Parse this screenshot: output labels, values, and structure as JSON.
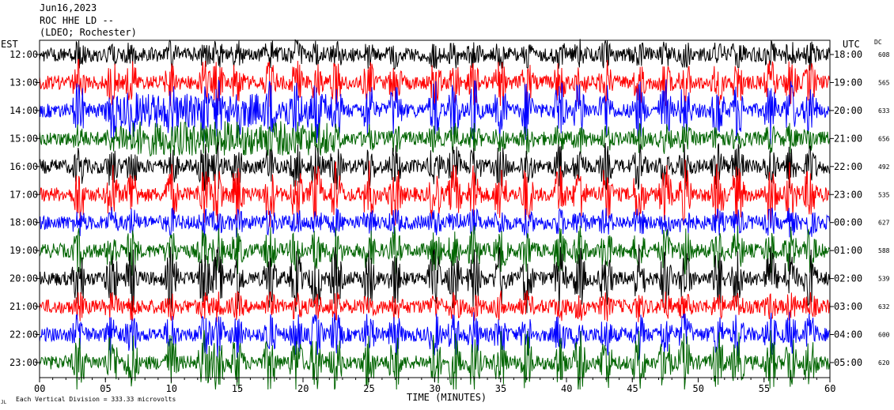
{
  "header": {
    "date": "Jun16,2023",
    "station": "ROC HHE LD --",
    "network": "(LDEO; Rochester)"
  },
  "chart_data": {
    "type": "line",
    "left_axis_label": "EST",
    "right_axis_label": "UTC",
    "dc_header": "DC",
    "xlabel": "TIME (MINUTES)",
    "x_ticks": [
      "00",
      "05",
      "10",
      "15",
      "20",
      "25",
      "30",
      "35",
      "40",
      "45",
      "50",
      "55",
      "60"
    ],
    "xlim": [
      0,
      60
    ],
    "footnote": "Each Vertical Division = 333.33 microvolts",
    "corner_mark": "JL",
    "trace_colors": [
      "#000000",
      "#ff0000",
      "#0000ff",
      "#006400"
    ],
    "rows": [
      {
        "est": "12:00",
        "utc": "18:00",
        "dc": "608"
      },
      {
        "est": "13:00",
        "utc": "19:00",
        "dc": "565"
      },
      {
        "est": "14:00",
        "utc": "20:00",
        "dc": "633"
      },
      {
        "est": "15:00",
        "utc": "21:00",
        "dc": "656"
      },
      {
        "est": "16:00",
        "utc": "22:00",
        "dc": "492"
      },
      {
        "est": "17:00",
        "utc": "23:00",
        "dc": "535"
      },
      {
        "est": "18:00",
        "utc": "00:00",
        "dc": "627"
      },
      {
        "est": "19:00",
        "utc": "01:00",
        "dc": "588"
      },
      {
        "est": "20:00",
        "utc": "02:00",
        "dc": "539"
      },
      {
        "est": "21:00",
        "utc": "03:00",
        "dc": "632"
      },
      {
        "est": "22:00",
        "utc": "04:00",
        "dc": "600"
      },
      {
        "est": "23:00",
        "utc": "05:00",
        "dc": "620"
      }
    ]
  }
}
